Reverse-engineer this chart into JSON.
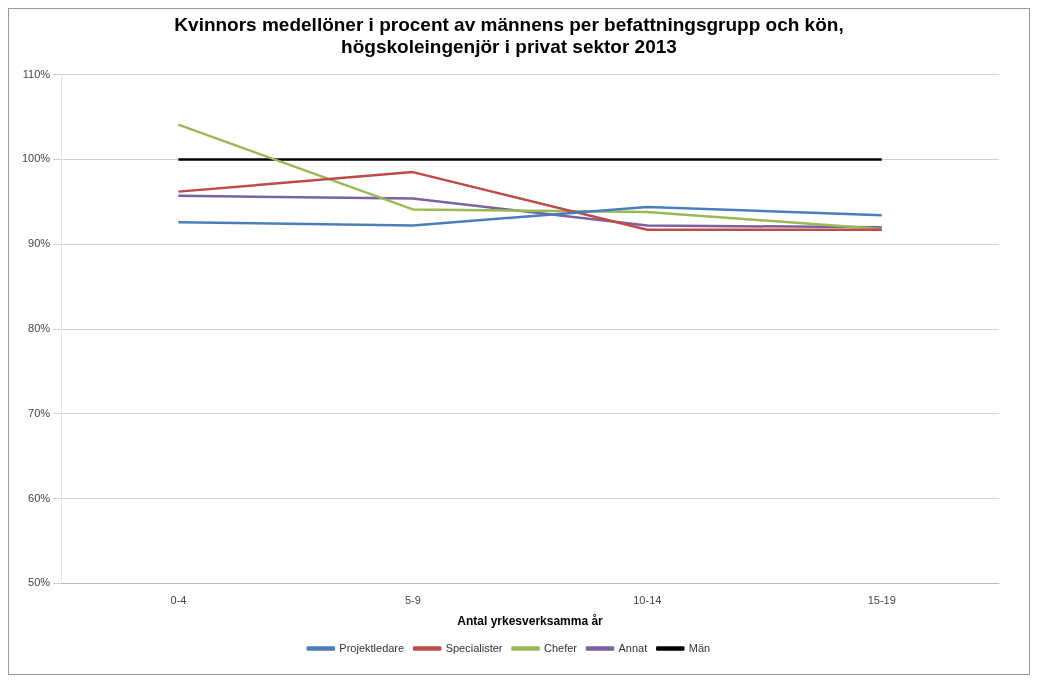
{
  "chart_data": {
    "type": "line",
    "title": "Kvinnors medellöner i procent av männens per befattningsgrupp och kön, högskoleingenjör i privat sektor 2013",
    "xlabel": "Antal yrkesverksamma år",
    "categories": [
      "0-4",
      "5-9",
      "10-14",
      "15-19"
    ],
    "series": [
      {
        "name": "Projektledare",
        "color": "#4a7ebb",
        "values": [
          92.6,
          92.2,
          94.4,
          93.4
        ]
      },
      {
        "name": "Specialister",
        "color": "#be4b48",
        "values": [
          96.2,
          98.5,
          91.7,
          91.7
        ]
      },
      {
        "name": "Chefer",
        "color": "#98b954",
        "values": [
          104.1,
          94.1,
          93.8,
          91.8
        ]
      },
      {
        "name": "Annat",
        "color": "#7d60a0",
        "values": [
          95.7,
          95.4,
          92.2,
          92.0
        ]
      },
      {
        "name": "Män",
        "color": "#000000",
        "values": [
          100,
          100,
          100,
          100
        ]
      }
    ],
    "ylim": [
      50,
      110
    ],
    "yticks": [
      {
        "value": 50,
        "label": "50%"
      },
      {
        "value": 60,
        "label": "60%"
      },
      {
        "value": 70,
        "label": "70%"
      },
      {
        "value": 80,
        "label": "80%"
      },
      {
        "value": 90,
        "label": "90%"
      },
      {
        "value": 100,
        "label": "100%"
      },
      {
        "value": 110,
        "label": "110%"
      }
    ],
    "grid": "y",
    "legend": "bottom",
    "marker": "none",
    "line_style": "solid"
  }
}
